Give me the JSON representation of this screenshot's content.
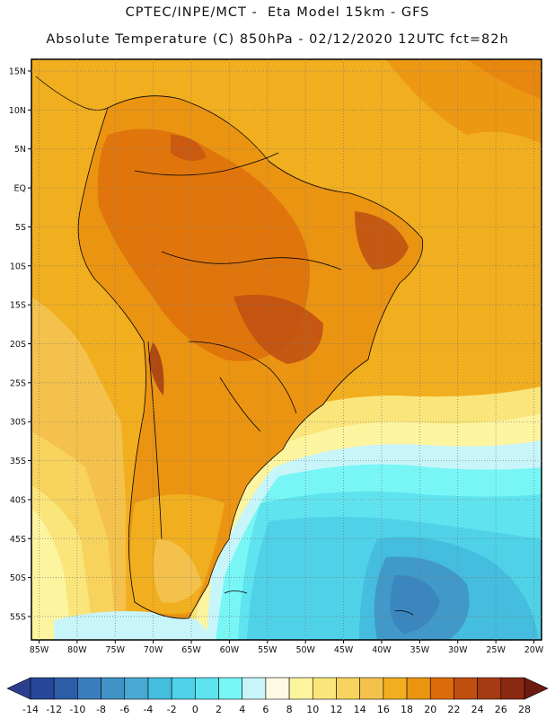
{
  "header": {
    "line1": "CPTEC/INPE/MCT -  Eta Model 15km - GFS",
    "line2": "Absolute Temperature (C) 850hPa - 02/12/2020 12UTC fct=82h"
  },
  "map": {
    "variable": "Absolute Temperature (C) 850hPa",
    "lon_range": [
      -86,
      -19
    ],
    "lat_range": [
      -58,
      16.5
    ],
    "lat_ticks": [
      "15N",
      "10N",
      "5N",
      "EQ",
      "5S",
      "10S",
      "15S",
      "20S",
      "25S",
      "30S",
      "35S",
      "40S",
      "45S",
      "50S",
      "55S"
    ],
    "lat_values": [
      15,
      10,
      5,
      0,
      -5,
      -10,
      -15,
      -20,
      -25,
      -30,
      -35,
      -40,
      -45,
      -50,
      -55
    ],
    "lon_ticks": [
      "85W",
      "80W",
      "75W",
      "70W",
      "65W",
      "60W",
      "55W",
      "50W",
      "45W",
      "40W",
      "35W",
      "30W",
      "25W",
      "20W"
    ],
    "lon_values": [
      -85,
      -80,
      -75,
      -70,
      -65,
      -60,
      -55,
      -50,
      -45,
      -40,
      -35,
      -30,
      -25,
      -20
    ]
  },
  "colorbar": {
    "labels": [
      "-14",
      "-12",
      "-10",
      "-8",
      "-6",
      "-4",
      "-2",
      "0",
      "2",
      "4",
      "6",
      "8",
      "10",
      "12",
      "14",
      "16",
      "18",
      "20",
      "22",
      "24",
      "26",
      "28"
    ],
    "colors": [
      "#2c3f8f",
      "#26479a",
      "#2e5da8",
      "#3a7dbc",
      "#3f93c6",
      "#4aa9d3",
      "#45bdde",
      "#4fd2e8",
      "#5fe3ef",
      "#78f6f6",
      "#c8f5fa",
      "#fdf9e4",
      "#fdf4a0",
      "#f9e57a",
      "#f7d35e",
      "#f4c24c",
      "#f1ae1e",
      "#eb9412",
      "#dc6c0a",
      "#c04f12",
      "#a63b13",
      "#8a2912",
      "#6d1a12"
    ]
  }
}
